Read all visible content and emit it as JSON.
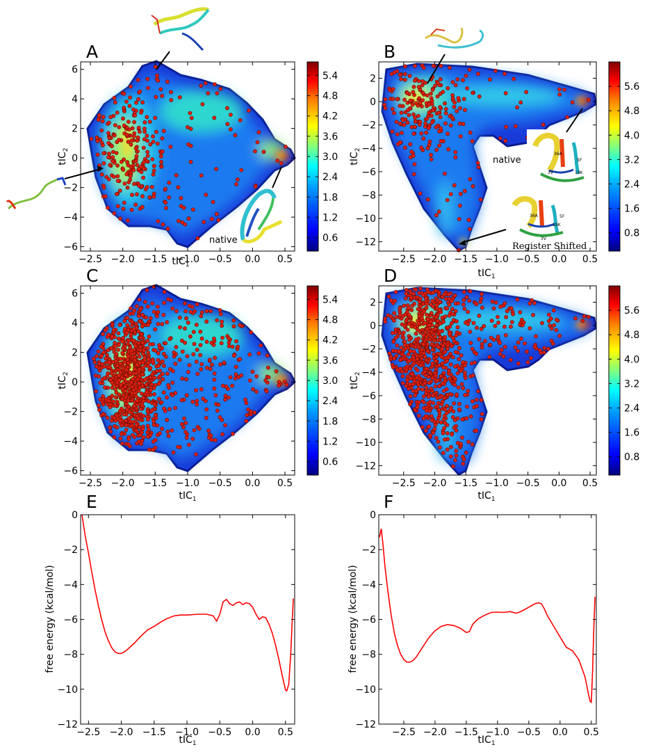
{
  "colors": {
    "marker": "#e02010",
    "curve": "#ff0000",
    "colormap": [
      "#00007f",
      "#0000ff",
      "#007fff",
      "#00ffff",
      "#7fff7f",
      "#ffff00",
      "#ff7f00",
      "#ff0000",
      "#7f0000"
    ]
  },
  "chart_data": [
    {
      "id": "A",
      "type": "heatmap",
      "title": "A",
      "xlabel": "tIC",
      "xlabel_sub": "1",
      "ylabel": "tIC",
      "ylabel_sub": "2",
      "xlim": [
        -2.65,
        0.65
      ],
      "ylim": [
        -6.3,
        6.5
      ],
      "xticks": [
        -2.5,
        -2.0,
        -1.5,
        -1.0,
        -0.5,
        0.0,
        0.5
      ],
      "yticks": [
        -6,
        -4,
        -2,
        0,
        2,
        4,
        6
      ],
      "colorbar": {
        "range": [
          0.2,
          5.8
        ],
        "ticks": [
          "0.6",
          "1.2",
          "1.8",
          "2.4",
          "3.0",
          "3.6",
          "4.2",
          "4.8",
          "5.4"
        ]
      },
      "annotations": [
        "native"
      ],
      "scatter_points": "sparse overlay (approx. 300 red markers)"
    },
    {
      "id": "B",
      "type": "heatmap",
      "title": "B",
      "xlabel": "tIC",
      "xlabel_sub": "1",
      "ylabel": "tIC",
      "ylabel_sub": "2",
      "xlim": [
        -2.9,
        0.6
      ],
      "ylim": [
        -12.8,
        3.4
      ],
      "xticks": [
        -2.5,
        -2.0,
        -1.5,
        -1.0,
        -0.5,
        0.0,
        0.5
      ],
      "yticks": [
        -12,
        -10,
        -8,
        -6,
        -4,
        -2,
        0,
        2
      ],
      "colorbar": {
        "range": [
          0.2,
          6.4
        ],
        "ticks": [
          "0.8",
          "1.6",
          "2.4",
          "3.2",
          "4.0",
          "4.8",
          "5.6"
        ]
      },
      "annotations": [
        "native",
        "Register Shifted",
        "36A",
        "5F",
        "3V",
        "19K"
      ],
      "scatter_points": "sparse overlay (approx. 250 red markers)"
    },
    {
      "id": "C",
      "type": "heatmap",
      "title": "C",
      "xlabel": "tIC",
      "xlabel_sub": "1",
      "ylabel": "tIC",
      "ylabel_sub": "2",
      "xlim": [
        -2.65,
        0.65
      ],
      "ylim": [
        -6.3,
        6.5
      ],
      "xticks": [
        -2.5,
        -2.0,
        -1.5,
        -1.0,
        -0.5,
        0.0,
        0.5
      ],
      "yticks": [
        -6,
        -4,
        -2,
        0,
        2,
        4,
        6
      ],
      "colorbar": {
        "range": [
          0.2,
          5.8
        ],
        "ticks": [
          "0.6",
          "1.2",
          "1.8",
          "2.4",
          "3.0",
          "3.6",
          "4.2",
          "4.8",
          "5.4"
        ]
      },
      "scatter_points": "dense overlay (approx. 1000 red markers)"
    },
    {
      "id": "D",
      "type": "heatmap",
      "title": "D",
      "xlabel": "tIC",
      "xlabel_sub": "1",
      "ylabel": "tIC",
      "ylabel_sub": "2",
      "xlim": [
        -2.9,
        0.6
      ],
      "ylim": [
        -12.8,
        3.4
      ],
      "xticks": [
        -2.5,
        -2.0,
        -1.5,
        -1.0,
        -0.5,
        0.0,
        0.5
      ],
      "yticks": [
        -12,
        -10,
        -8,
        -6,
        -4,
        -2,
        0,
        2
      ],
      "colorbar": {
        "range": [
          0.2,
          6.4
        ],
        "ticks": [
          "0.8",
          "1.6",
          "2.4",
          "3.2",
          "4.0",
          "4.8",
          "5.6"
        ]
      },
      "scatter_points": "dense overlay (approx. 900 red markers)"
    },
    {
      "id": "E",
      "type": "line",
      "title": "E",
      "xlabel": "tIC",
      "xlabel_sub": "1",
      "ylabel": "free energy (kcal/mol)",
      "xlim": [
        -2.62,
        0.64
      ],
      "ylim": [
        -12,
        0
      ],
      "xticks": [
        -2.5,
        -2.0,
        -1.5,
        -1.0,
        -0.5,
        0.0,
        0.5
      ],
      "yticks": [
        0,
        -2,
        -4,
        -6,
        -8,
        -10,
        -12
      ],
      "series": [
        {
          "name": "free energy",
          "x": [
            -2.6,
            -2.55,
            -2.5,
            -2.45,
            -2.4,
            -2.35,
            -2.3,
            -2.25,
            -2.2,
            -2.15,
            -2.1,
            -2.05,
            -2.0,
            -1.95,
            -1.9,
            -1.8,
            -1.7,
            -1.6,
            -1.5,
            -1.4,
            -1.3,
            -1.2,
            -1.1,
            -1.0,
            -0.9,
            -0.8,
            -0.7,
            -0.6,
            -0.55,
            -0.5,
            -0.45,
            -0.4,
            -0.35,
            -0.3,
            -0.25,
            -0.2,
            -0.15,
            -0.1,
            -0.05,
            0.0,
            0.05,
            0.1,
            0.15,
            0.2,
            0.25,
            0.3,
            0.35,
            0.4,
            0.45,
            0.5,
            0.52,
            0.55,
            0.58,
            0.6,
            0.62
          ],
          "y": [
            0,
            -1.2,
            -2.2,
            -3.3,
            -4.3,
            -5.2,
            -6.0,
            -6.7,
            -7.2,
            -7.6,
            -7.85,
            -7.95,
            -7.95,
            -7.85,
            -7.7,
            -7.35,
            -6.95,
            -6.6,
            -6.4,
            -6.15,
            -5.95,
            -5.8,
            -5.75,
            -5.75,
            -5.72,
            -5.7,
            -5.7,
            -5.8,
            -6.1,
            -5.7,
            -5.0,
            -4.85,
            -5.1,
            -5.2,
            -5.05,
            -5.0,
            -5.15,
            -5.05,
            -5.1,
            -5.3,
            -5.7,
            -6.0,
            -5.85,
            -5.9,
            -6.3,
            -6.8,
            -7.5,
            -8.3,
            -9.2,
            -10.05,
            -10.1,
            -9.7,
            -8.0,
            -6.3,
            -4.8
          ]
        }
      ]
    },
    {
      "id": "F",
      "type": "line",
      "title": "F",
      "xlabel": "tIC",
      "xlabel_sub": "1",
      "ylabel": "free energy (kcal/mol)",
      "xlim": [
        -2.9,
        0.58
      ],
      "ylim": [
        -12,
        0
      ],
      "xticks": [
        -2.5,
        -2.0,
        -1.5,
        -1.0,
        -0.5,
        0.0,
        0.5
      ],
      "yticks": [
        0,
        -2,
        -4,
        -6,
        -8,
        -10,
        -12
      ],
      "series": [
        {
          "name": "free energy",
          "x": [
            -2.89,
            -2.86,
            -2.83,
            -2.8,
            -2.75,
            -2.7,
            -2.65,
            -2.6,
            -2.55,
            -2.5,
            -2.45,
            -2.4,
            -2.35,
            -2.3,
            -2.2,
            -2.1,
            -2.0,
            -1.9,
            -1.8,
            -1.7,
            -1.6,
            -1.5,
            -1.45,
            -1.4,
            -1.35,
            -1.3,
            -1.2,
            -1.1,
            -1.0,
            -0.9,
            -0.8,
            -0.7,
            -0.6,
            -0.5,
            -0.4,
            -0.35,
            -0.3,
            -0.25,
            -0.2,
            -0.1,
            0.0,
            0.1,
            0.2,
            0.3,
            0.4,
            0.45,
            0.48,
            0.5,
            0.52,
            0.54,
            0.56
          ],
          "y": [
            -1.3,
            -0.8,
            -1.8,
            -3.0,
            -4.5,
            -5.8,
            -6.8,
            -7.5,
            -8.0,
            -8.3,
            -8.45,
            -8.45,
            -8.35,
            -8.15,
            -7.6,
            -7.05,
            -6.65,
            -6.4,
            -6.3,
            -6.35,
            -6.5,
            -6.75,
            -6.7,
            -6.3,
            -6.1,
            -5.95,
            -5.75,
            -5.6,
            -5.58,
            -5.6,
            -5.55,
            -5.65,
            -5.5,
            -5.3,
            -5.1,
            -5.05,
            -5.1,
            -5.4,
            -5.8,
            -6.4,
            -7.0,
            -7.6,
            -7.8,
            -8.3,
            -9.3,
            -10.2,
            -10.7,
            -10.75,
            -9.0,
            -6.5,
            -4.7
          ]
        }
      ]
    }
  ]
}
